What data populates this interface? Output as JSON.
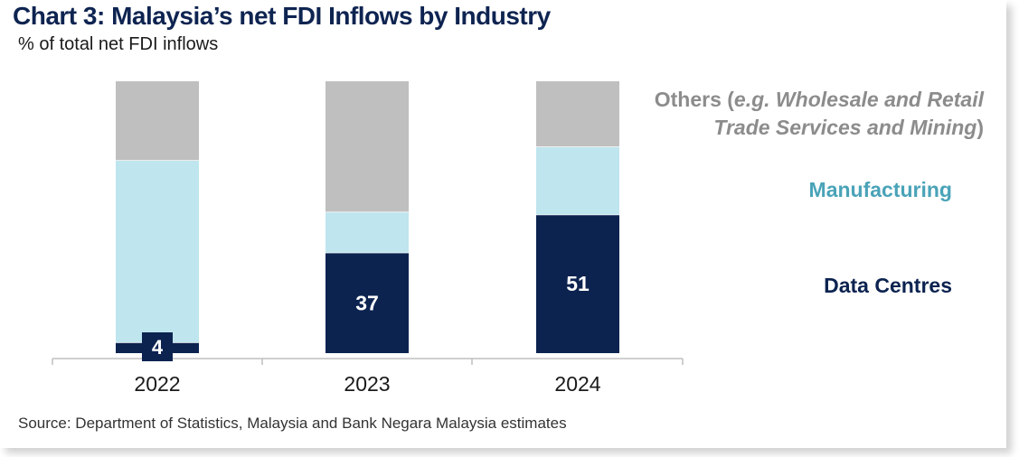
{
  "title": "Chart 3: Malaysia’s net FDI Inflows by Industry",
  "subtitle": "% of total net FDI inflows",
  "source": "Source: Department of Statistics, Malaysia and Bank Negara Malaysia estimates",
  "colors": {
    "data_centres": "#0c2350",
    "manufacturing": "#bfe5ee",
    "others": "#bfbfbf",
    "manufacturing_label": "#4aa3b8",
    "others_label": "#8c8c8c"
  },
  "chart_data": {
    "type": "bar",
    "stacked": true,
    "categories": [
      "2022",
      "2023",
      "2024"
    ],
    "ylim": [
      0,
      100
    ],
    "series": [
      {
        "name": "Data Centres",
        "values": [
          4,
          37,
          51
        ]
      },
      {
        "name": "Manufacturing",
        "values": [
          67,
          15,
          25
        ]
      },
      {
        "name": "Others (e.g. Wholesale and Retail Trade Services and Mining)",
        "values": [
          29,
          48,
          24
        ]
      }
    ],
    "data_labels": [
      "4",
      "37",
      "51"
    ],
    "legend": {
      "placement": "right",
      "others_line1_plain": "Others (",
      "others_line1_italic": "e.g. Wholesale and Retail",
      "others_line2_italic": "Trade Services and Mining",
      "others_line2_plain": ")",
      "manufacturing": "Manufacturing",
      "data_centres": "Data Centres"
    },
    "grid": false
  }
}
